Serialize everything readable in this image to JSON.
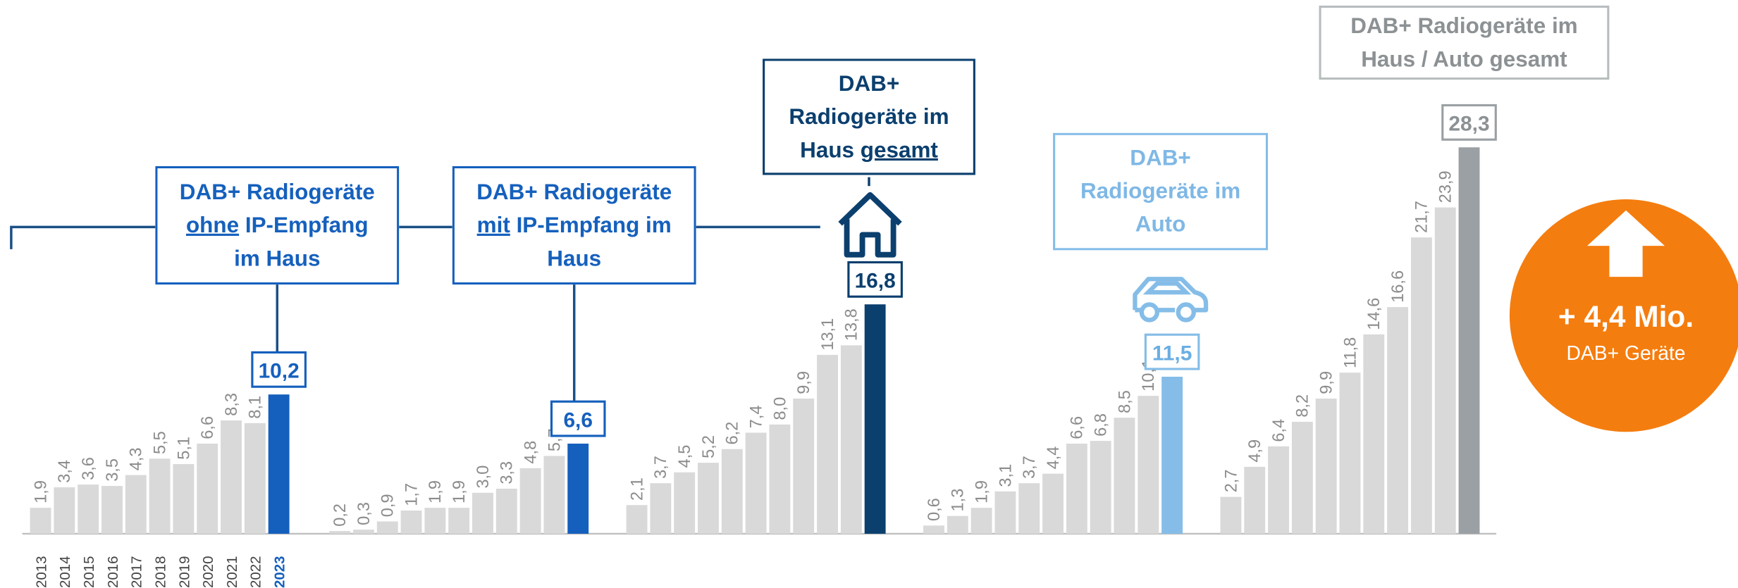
{
  "chart_data": {
    "type": "bar",
    "categories": [
      "2013",
      "2014",
      "2015",
      "2016",
      "2017",
      "2018",
      "2019",
      "2020",
      "2021",
      "2022",
      "2023"
    ],
    "base_color": "#d9d9d9",
    "series": [
      {
        "name": "DAB+ Radiogeräte ohne IP-Empfang im Haus",
        "emphasis": "ohne",
        "color": "#1560bd",
        "values": [
          1.9,
          3.4,
          3.6,
          3.5,
          4.3,
          5.5,
          5.1,
          6.6,
          8.3,
          8.1,
          10.2
        ],
        "value_labels": [
          "1,9",
          "3,4",
          "3,6",
          "3,5",
          "4,3",
          "5,5",
          "5,1",
          "6,6",
          "8,3",
          "8,1",
          "10,2"
        ]
      },
      {
        "name": "DAB+ Radiogeräte mit IP-Empfang im Haus",
        "emphasis": "mit",
        "color": "#1560bd",
        "values": [
          0.2,
          0.3,
          0.9,
          1.7,
          1.9,
          1.9,
          3.0,
          3.3,
          4.8,
          5.7,
          6.6
        ],
        "value_labels": [
          "0,2",
          "0,3",
          "0,9",
          "1,7",
          "1,9",
          "1,9",
          "3,0",
          "3,3",
          "4,8",
          "5,7",
          "6,6"
        ]
      },
      {
        "name": "DAB+ Radiogeräte im Haus gesamt",
        "emphasis": "gesamt",
        "color": "#0b3f6e",
        "values": [
          2.1,
          3.7,
          4.5,
          5.2,
          6.2,
          7.4,
          8.0,
          9.9,
          13.1,
          13.8,
          16.8
        ],
        "value_labels": [
          "2,1",
          "3,7",
          "4,5",
          "5,2",
          "6,2",
          "7,4",
          "8,0",
          "9,9",
          "13,1",
          "13,8",
          "16,8"
        ]
      },
      {
        "name": "DAB+ Radiogeräte im Auto",
        "color": "#85bde8",
        "values": [
          0.6,
          1.3,
          1.9,
          3.1,
          3.7,
          4.4,
          6.6,
          6.8,
          8.5,
          10.1,
          11.5
        ],
        "value_labels": [
          "0,6",
          "1,3",
          "1,9",
          "3,1",
          "3,7",
          "4,4",
          "6,6",
          "6,8",
          "8,5",
          "10,1",
          "11,5"
        ]
      },
      {
        "name": "DAB+ Radiogeräte im Haus / Auto gesamt",
        "color": "#9aa0a3",
        "values": [
          2.7,
          4.9,
          6.4,
          8.2,
          9.9,
          11.8,
          14.6,
          16.6,
          21.7,
          23.9,
          28.3
        ],
        "value_labels": [
          "2,7",
          "4,9",
          "6,4",
          "8,2",
          "9,9",
          "11,8",
          "14,6",
          "16,6",
          "21,7",
          "23,9",
          "28,3"
        ]
      }
    ],
    "annotation": {
      "text": "+ 4,4 Mio.",
      "subtext": "DAB+ Geräte",
      "color": "#f47d0f"
    }
  }
}
